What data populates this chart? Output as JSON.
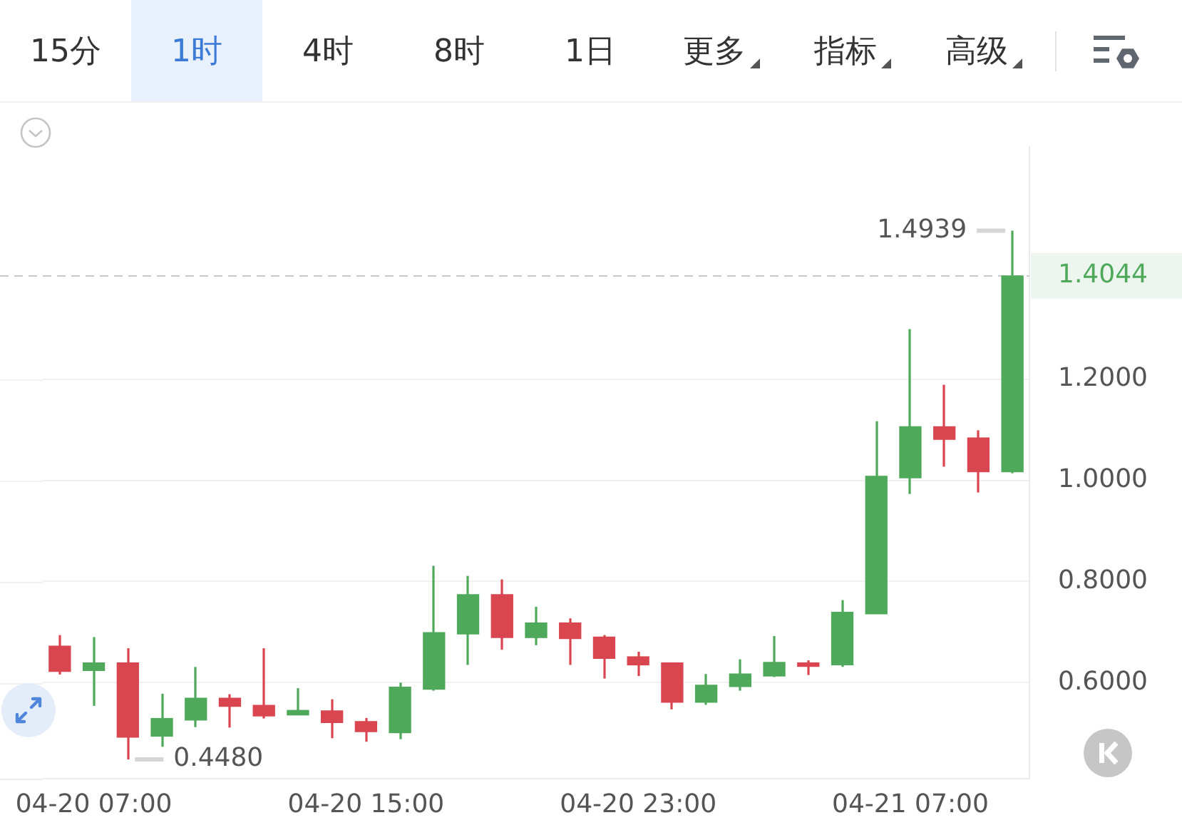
{
  "chart_data": {
    "type": "candlestick",
    "categories": [
      null,
      "04-20 07:00",
      null,
      null,
      null,
      null,
      null,
      null,
      null,
      "04-20 15:00",
      null,
      null,
      null,
      null,
      null,
      null,
      null,
      "04-20 23:00",
      null,
      null,
      null,
      null,
      null,
      null,
      null,
      "04-21 07:00",
      null,
      null,
      null
    ],
    "ohlc": [
      [
        0.672,
        0.694,
        0.616,
        0.622
      ],
      [
        0.624,
        0.69,
        0.554,
        0.639
      ],
      [
        0.639,
        0.668,
        0.448,
        0.492
      ],
      [
        0.494,
        0.578,
        0.473,
        0.529
      ],
      [
        0.526,
        0.631,
        0.512,
        0.569
      ],
      [
        0.569,
        0.577,
        0.511,
        0.553
      ],
      [
        0.555,
        0.668,
        0.529,
        0.534
      ],
      [
        0.536,
        0.589,
        0.536,
        0.545
      ],
      [
        0.544,
        0.567,
        0.49,
        0.521
      ],
      [
        0.523,
        0.53,
        0.483,
        0.503
      ],
      [
        0.501,
        0.6,
        0.488,
        0.591
      ],
      [
        0.587,
        0.831,
        0.584,
        0.699
      ],
      [
        0.696,
        0.811,
        0.635,
        0.774
      ],
      [
        0.774,
        0.804,
        0.665,
        0.689
      ],
      [
        0.689,
        0.75,
        0.674,
        0.718
      ],
      [
        0.718,
        0.727,
        0.635,
        0.687
      ],
      [
        0.69,
        0.694,
        0.608,
        0.648
      ],
      [
        0.651,
        0.661,
        0.613,
        0.635
      ],
      [
        0.639,
        0.639,
        0.547,
        0.561
      ],
      [
        0.561,
        0.617,
        0.556,
        0.595
      ],
      [
        0.592,
        0.646,
        0.584,
        0.617
      ],
      [
        0.613,
        0.692,
        0.611,
        0.64
      ],
      [
        0.639,
        0.644,
        0.615,
        0.632
      ],
      [
        0.635,
        0.763,
        0.631,
        0.739
      ],
      [
        0.736,
        1.117,
        0.736,
        1.008
      ],
      [
        1.005,
        1.299,
        0.973,
        1.106
      ],
      [
        1.106,
        1.189,
        1.027,
        1.081
      ],
      [
        1.084,
        1.099,
        0.976,
        1.017
      ],
      [
        1.017,
        1.4939,
        1.014,
        1.4044
      ]
    ],
    "colors": [
      "#d9464f",
      "#4fa95b",
      "#d9464f",
      "#4fa95b",
      "#4fa95b",
      "#d9464f",
      "#d9464f",
      "#4fa95b",
      "#d9464f",
      "#d9464f",
      "#4fa95b",
      "#4fa95b",
      "#4fa95b",
      "#d9464f",
      "#4fa95b",
      "#d9464f",
      "#d9464f",
      "#d9464f",
      "#d9464f",
      "#4fa95b",
      "#4fa95b",
      "#4fa95b",
      "#d9464f",
      "#4fa95b",
      "#4fa95b",
      "#4fa95b",
      "#d9464f",
      "#d9464f",
      "#4fa95b"
    ],
    "ylim": [
      0.41,
      1.66
    ],
    "yticks": [
      {
        "value": 0.6,
        "label": "0.6000"
      },
      {
        "value": 0.8,
        "label": "0.8000"
      },
      {
        "value": 1.0,
        "label": "1.0000"
      },
      {
        "value": 1.2,
        "label": "1.2000"
      }
    ],
    "grid": "y",
    "ref_lines": [
      {
        "axis": "y",
        "value": 1.4044,
        "label": "1.4044",
        "color": "#c8c8c8",
        "line_style": "dashed"
      }
    ],
    "annotations": [
      "15分",
      "1时",
      "4时",
      "8时",
      "1日",
      "更多",
      "指标",
      "高级",
      "1.4939",
      "0.4480"
    ]
  }
}
